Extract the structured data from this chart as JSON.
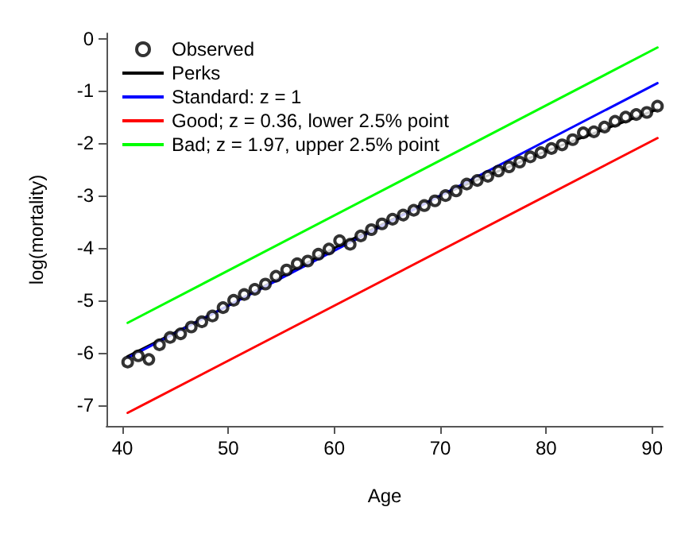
{
  "chart_data": {
    "type": "scatter",
    "xlabel": "Age",
    "ylabel": "log(mortality)",
    "xlim": [
      38.5,
      91
    ],
    "ylim": [
      -7.4,
      0.1
    ],
    "xticks": [
      40,
      50,
      60,
      70,
      80,
      90
    ],
    "yticks": [
      -7,
      -6,
      -5,
      -4,
      -3,
      -2,
      -1,
      0
    ],
    "grid": false,
    "legend": "top left",
    "series": [
      {
        "name": "Observed",
        "marker": "circle",
        "color": "#000000",
        "x": [
          40.5,
          41.5,
          42.5,
          43.5,
          44.5,
          45.5,
          46.5,
          47.5,
          48.5,
          49.5,
          50.5,
          51.5,
          52.5,
          53.5,
          54.5,
          55.5,
          56.5,
          57.5,
          58.5,
          59.5,
          60.5,
          61.5,
          62.5,
          63.5,
          64.5,
          65.5,
          66.5,
          67.5,
          68.5,
          69.5,
          70.5,
          71.5,
          72.5,
          73.5,
          74.5,
          75.5,
          76.5,
          77.5,
          78.5,
          79.5,
          80.5,
          81.5,
          82.5,
          83.5,
          84.5,
          85.5,
          86.5,
          87.5,
          88.5,
          89.5,
          90.5
        ],
        "values": [
          -6.18,
          -6.06,
          -6.13,
          -5.85,
          -5.71,
          -5.64,
          -5.51,
          -5.41,
          -5.3,
          -5.14,
          -5.0,
          -4.89,
          -4.79,
          -4.69,
          -4.54,
          -4.42,
          -4.3,
          -4.25,
          -4.12,
          -4.02,
          -3.86,
          -3.93,
          -3.77,
          -3.65,
          -3.54,
          -3.45,
          -3.37,
          -3.28,
          -3.19,
          -3.1,
          -3.0,
          -2.91,
          -2.78,
          -2.71,
          -2.63,
          -2.53,
          -2.45,
          -2.36,
          -2.26,
          -2.18,
          -2.1,
          -2.03,
          -1.93,
          -1.8,
          -1.78,
          -1.69,
          -1.58,
          -1.5,
          -1.45,
          -1.41,
          -1.29
        ]
      },
      {
        "name": "Perks",
        "type": "line",
        "marker": "none",
        "color": "#000000",
        "x": [
          40.5,
          50,
          60,
          70,
          80,
          90.5
        ],
        "values": [
          -6.07,
          -5.1,
          -4.0,
          -3.0,
          -2.15,
          -1.35
        ]
      },
      {
        "name": "Standard: z = 1",
        "type": "line",
        "marker": "none",
        "color": "#0000ff",
        "x": [
          40.5,
          90.5
        ],
        "values": [
          -6.1,
          -0.85
        ]
      },
      {
        "name": "Good; z = 0.36, lower 2.5% point",
        "type": "line",
        "marker": "none",
        "color": "#ff0000",
        "x": [
          40.5,
          90.5
        ],
        "values": [
          -7.15,
          -1.9
        ]
      },
      {
        "name": "Bad; z = 1.97, upper 2.5% point",
        "type": "line",
        "marker": "none",
        "color": "#00ff00",
        "x": [
          40.5,
          90.5
        ],
        "values": [
          -5.43,
          -0.17
        ]
      }
    ]
  }
}
